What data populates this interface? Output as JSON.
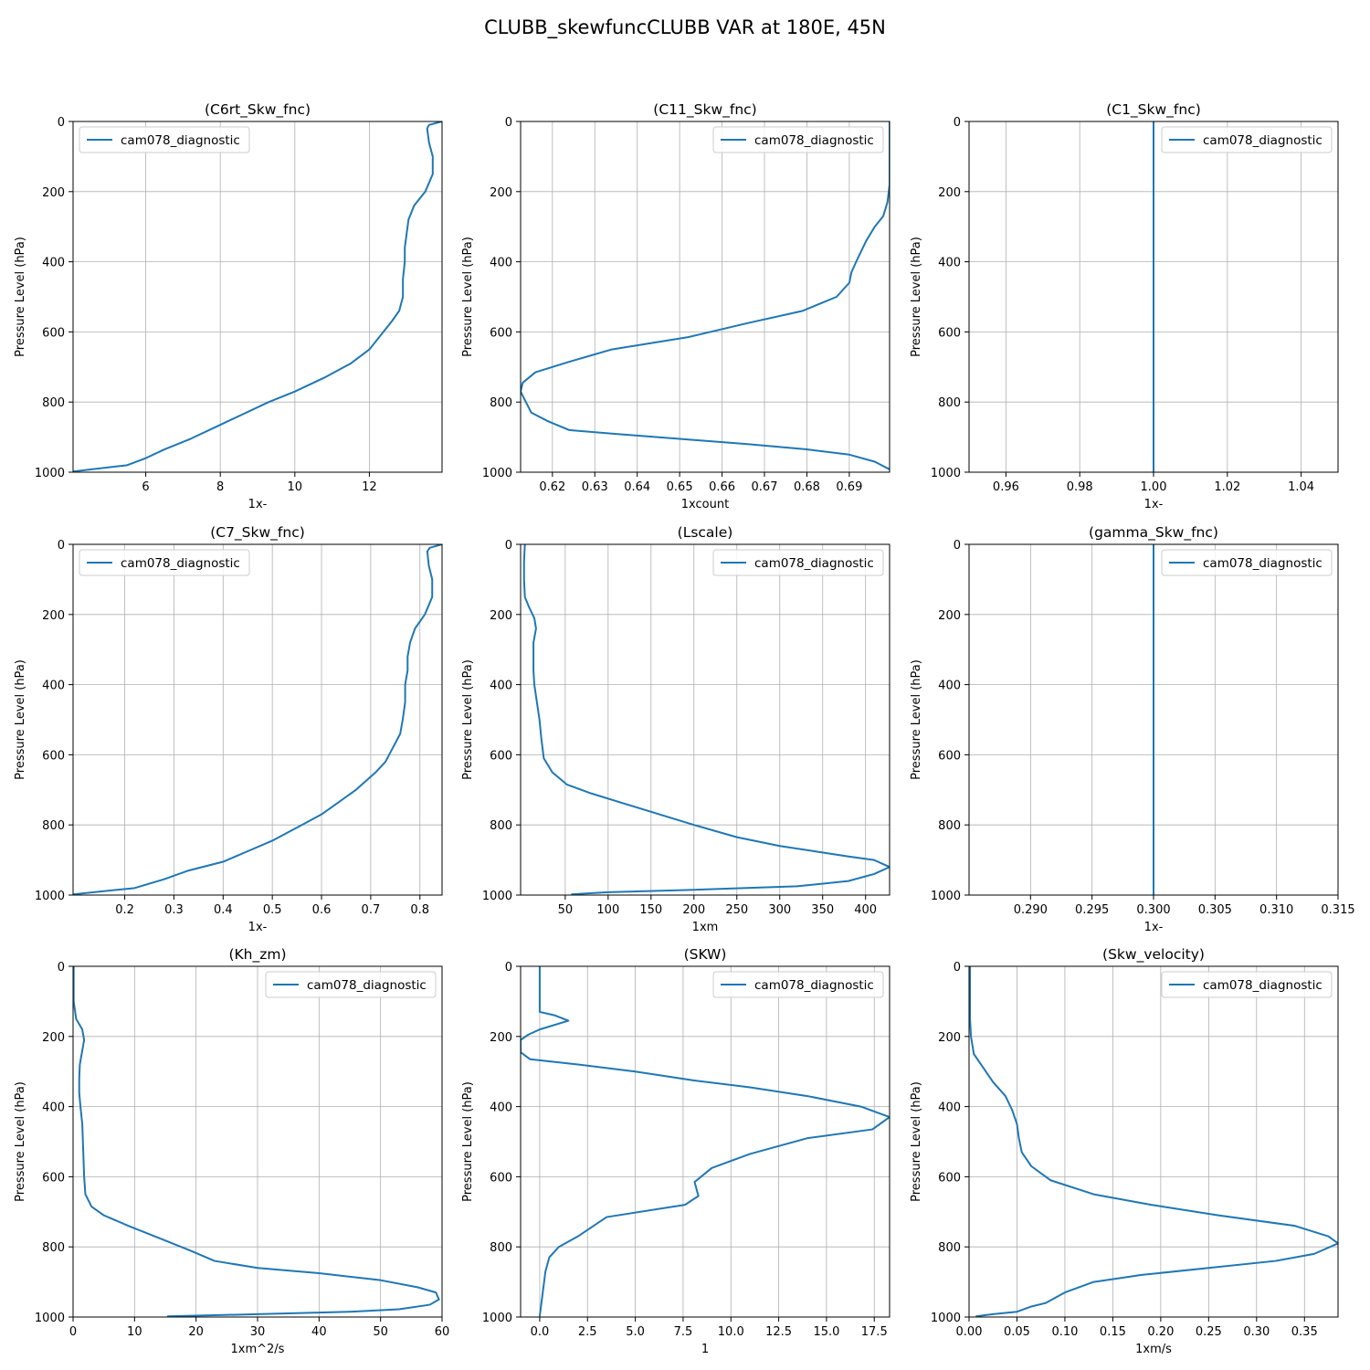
{
  "figure": {
    "title": "CLUBB_skewfuncCLUBB VAR at 180E, 45N"
  },
  "style": {
    "line_color": "#1f77b4",
    "grid_color": "#b0b0b0"
  },
  "chart_data": [
    {
      "type": "line",
      "title": "(C6rt_Skw_fnc)",
      "xlabel": "1x-",
      "ylabel": "Pressure Level (hPa)",
      "xlim": [
        4.05,
        13.95
      ],
      "ylim": [
        1000,
        0
      ],
      "xticks": [
        6,
        8,
        10,
        12
      ],
      "xtick_labels": [
        "6",
        "8",
        "10",
        "12"
      ],
      "yticks": [
        0,
        200,
        400,
        600,
        800,
        1000
      ],
      "ytick_labels": [
        "0",
        "200",
        "400",
        "600",
        "800",
        "1000"
      ],
      "grid": true,
      "legend": "upper-left",
      "series": [
        {
          "name": "cam078_diagnostic",
          "x": [
            13.95,
            13.6,
            13.55,
            13.6,
            13.7,
            13.7,
            13.5,
            13.2,
            13.05,
            13.0,
            12.95,
            12.95,
            12.9,
            12.9,
            12.8,
            12.6,
            12.3,
            12.0,
            11.5,
            10.8,
            10.0,
            9.3,
            8.6,
            7.9,
            7.2,
            6.5,
            6.0,
            5.5,
            4.05
          ],
          "y": [
            0,
            10,
            20,
            60,
            100,
            150,
            200,
            240,
            280,
            320,
            360,
            400,
            450,
            500,
            540,
            570,
            610,
            650,
            690,
            730,
            770,
            800,
            835,
            870,
            905,
            935,
            960,
            980,
            998
          ]
        }
      ]
    },
    {
      "type": "line",
      "title": "(C11_Skw_fnc)",
      "xlabel": "1xcount",
      "ylabel": "Pressure Level (hPa)",
      "xlim": [
        0.6125,
        0.6995
      ],
      "ylim": [
        1000,
        0
      ],
      "xticks": [
        0.62,
        0.63,
        0.64,
        0.65,
        0.66,
        0.67,
        0.68,
        0.69
      ],
      "xtick_labels": [
        "0.62",
        "0.63",
        "0.64",
        "0.65",
        "0.66",
        "0.67",
        "0.68",
        "0.69"
      ],
      "yticks": [
        0,
        200,
        400,
        600,
        800,
        1000
      ],
      "ytick_labels": [
        "0",
        "200",
        "400",
        "600",
        "800",
        "1000"
      ],
      "grid": true,
      "legend": "upper-right",
      "series": [
        {
          "name": "cam078_diagnostic",
          "x": [
            0.6995,
            0.6995,
            0.6995,
            0.699,
            0.698,
            0.696,
            0.694,
            0.692,
            0.6905,
            0.69,
            0.687,
            0.679,
            0.666,
            0.652,
            0.634,
            0.624,
            0.616,
            0.613,
            0.6125,
            0.615,
            0.619,
            0.624,
            0.634,
            0.65,
            0.666,
            0.68,
            0.69,
            0.696,
            0.6995
          ],
          "y": [
            0,
            100,
            180,
            230,
            270,
            300,
            340,
            390,
            430,
            460,
            500,
            540,
            575,
            615,
            650,
            685,
            715,
            745,
            770,
            830,
            855,
            880,
            890,
            905,
            920,
            935,
            950,
            970,
            992
          ]
        }
      ]
    },
    {
      "type": "line",
      "title": "(C1_Skw_fnc)",
      "xlabel": "1x-",
      "ylabel": "Pressure Level (hPa)",
      "xlim": [
        0.95,
        1.05
      ],
      "ylim": [
        1000,
        0
      ],
      "xticks": [
        0.96,
        0.98,
        1.0,
        1.02,
        1.04
      ],
      "xtick_labels": [
        "0.96",
        "0.98",
        "1.00",
        "1.02",
        "1.04"
      ],
      "yticks": [
        0,
        200,
        400,
        600,
        800,
        1000
      ],
      "ytick_labels": [
        "0",
        "200",
        "400",
        "600",
        "800",
        "1000"
      ],
      "grid": true,
      "legend": "upper-right",
      "series": [
        {
          "name": "cam078_diagnostic",
          "x": [
            1.0,
            1.0
          ],
          "y": [
            0,
            1000
          ]
        }
      ]
    },
    {
      "type": "line",
      "title": "(C7_Skw_fnc)",
      "xlabel": "1x-",
      "ylabel": "Pressure Level (hPa)",
      "xlim": [
        0.095,
        0.845
      ],
      "ylim": [
        1000,
        0
      ],
      "xticks": [
        0.2,
        0.3,
        0.4,
        0.5,
        0.6,
        0.7,
        0.8
      ],
      "xtick_labels": [
        "0.2",
        "0.3",
        "0.4",
        "0.5",
        "0.6",
        "0.7",
        "0.8"
      ],
      "yticks": [
        0,
        200,
        400,
        600,
        800,
        1000
      ],
      "ytick_labels": [
        "0",
        "200",
        "400",
        "600",
        "800",
        "1000"
      ],
      "grid": true,
      "legend": "upper-left",
      "series": [
        {
          "name": "cam078_diagnostic",
          "x": [
            0.845,
            0.82,
            0.815,
            0.818,
            0.825,
            0.825,
            0.81,
            0.79,
            0.78,
            0.775,
            0.775,
            0.77,
            0.77,
            0.765,
            0.76,
            0.745,
            0.73,
            0.71,
            0.67,
            0.63,
            0.6,
            0.56,
            0.5,
            0.45,
            0.4,
            0.33,
            0.28,
            0.22,
            0.095
          ],
          "y": [
            0,
            10,
            20,
            60,
            100,
            150,
            200,
            240,
            280,
            320,
            360,
            400,
            450,
            500,
            540,
            580,
            620,
            650,
            700,
            740,
            770,
            800,
            845,
            875,
            905,
            930,
            955,
            980,
            998
          ]
        }
      ]
    },
    {
      "type": "line",
      "title": "(Lscale)",
      "xlabel": "1xm",
      "ylabel": "Pressure Level (hPa)",
      "xlim": [
        -2,
        428
      ],
      "ylim": [
        1000,
        0
      ],
      "xticks": [
        50,
        100,
        150,
        200,
        250,
        300,
        350,
        400
      ],
      "xtick_labels": [
        "50",
        "100",
        "150",
        "200",
        "250",
        "300",
        "350",
        "400"
      ],
      "yticks": [
        0,
        200,
        400,
        600,
        800,
        1000
      ],
      "ytick_labels": [
        "0",
        "200",
        "400",
        "600",
        "800",
        "1000"
      ],
      "grid": true,
      "legend": "upper-right",
      "series": [
        {
          "name": "cam078_diagnostic",
          "x": [
            3,
            2,
            2,
            3,
            8,
            14,
            16,
            13,
            13,
            13,
            14,
            17,
            20,
            22,
            25,
            35,
            52,
            80,
            120,
            160,
            200,
            250,
            300,
            340,
            380,
            410,
            428,
            410,
            380,
            320,
            200,
            100,
            57
          ],
          "y": [
            0,
            50,
            100,
            150,
            180,
            210,
            240,
            280,
            320,
            360,
            400,
            450,
            500,
            550,
            610,
            650,
            685,
            710,
            740,
            770,
            800,
            835,
            860,
            875,
            890,
            900,
            920,
            940,
            960,
            975,
            985,
            992,
            998
          ]
        }
      ]
    },
    {
      "type": "line",
      "title": "(gamma_Skw_fnc)",
      "xlabel": "1x-",
      "ylabel": "Pressure Level (hPa)",
      "xlim": [
        0.285,
        0.315
      ],
      "ylim": [
        1000,
        0
      ],
      "xticks": [
        0.29,
        0.295,
        0.3,
        0.305,
        0.31,
        0.315
      ],
      "xtick_labels": [
        "0.290",
        "0.295",
        "0.300",
        "0.305",
        "0.310",
        "0.315"
      ],
      "yticks": [
        0,
        200,
        400,
        600,
        800,
        1000
      ],
      "ytick_labels": [
        "0",
        "200",
        "400",
        "600",
        "800",
        "1000"
      ],
      "grid": true,
      "legend": "upper-right",
      "series": [
        {
          "name": "cam078_diagnostic",
          "x": [
            0.3,
            0.3
          ],
          "y": [
            0,
            1000
          ]
        }
      ]
    },
    {
      "type": "line",
      "title": "(Kh_zm)",
      "xlabel": "1xm^2/s",
      "ylabel": "Pressure Level (hPa)",
      "xlim": [
        0,
        60
      ],
      "ylim": [
        1000,
        0
      ],
      "xticks": [
        0,
        10,
        20,
        30,
        40,
        50,
        60
      ],
      "xtick_labels": [
        "0",
        "10",
        "20",
        "30",
        "40",
        "50",
        "60"
      ],
      "yticks": [
        0,
        200,
        400,
        600,
        800,
        1000
      ],
      "ytick_labels": [
        "0",
        "200",
        "400",
        "600",
        "800",
        "1000"
      ],
      "grid": true,
      "legend": "upper-right",
      "series": [
        {
          "name": "cam078_diagnostic",
          "x": [
            0.1,
            0.1,
            0.1,
            0.5,
            1.5,
            1.8,
            1.5,
            1.1,
            1.0,
            1.0,
            1.2,
            1.5,
            1.6,
            1.7,
            1.8,
            2.0,
            3.0,
            5.0,
            9.0,
            14,
            19,
            23,
            30,
            40,
            50,
            56,
            59,
            59.5,
            58,
            53,
            45,
            30,
            15.3
          ],
          "y": [
            0,
            50,
            100,
            150,
            180,
            210,
            240,
            280,
            320,
            360,
            400,
            450,
            500,
            550,
            600,
            650,
            685,
            710,
            740,
            775,
            810,
            840,
            860,
            875,
            895,
            915,
            930,
            950,
            965,
            978,
            985,
            992,
            998
          ]
        }
      ]
    },
    {
      "type": "line",
      "title": "(SKW)",
      "xlabel": "1",
      "ylabel": "Pressure Level (hPa)",
      "xlim": [
        -1.0,
        18.3
      ],
      "ylim": [
        1000,
        0
      ],
      "xticks": [
        0.0,
        2.5,
        5.0,
        7.5,
        10.0,
        12.5,
        15.0,
        17.5
      ],
      "xtick_labels": [
        "0.0",
        "2.5",
        "5.0",
        "7.5",
        "10.0",
        "12.5",
        "15.0",
        "17.5"
      ],
      "yticks": [
        0,
        200,
        400,
        600,
        800,
        1000
      ],
      "ytick_labels": [
        "0",
        "200",
        "400",
        "600",
        "800",
        "1000"
      ],
      "grid": true,
      "legend": "upper-right",
      "series": [
        {
          "name": "cam078_diagnostic",
          "x": [
            0.0,
            0.0,
            0.0,
            0.8,
            1.5,
            0.0,
            -0.6,
            -1.0,
            -1.0,
            -0.5,
            2.0,
            5.0,
            8.0,
            11.0,
            14.0,
            16.8,
            18.3,
            17.4,
            14.0,
            11.0,
            9.0,
            8.1,
            8.3,
            7.6,
            3.5,
            2.0,
            1.0,
            0.5,
            0.3,
            0.0
          ],
          "y": [
            0,
            50,
            130,
            140,
            155,
            180,
            195,
            210,
            245,
            265,
            280,
            300,
            325,
            345,
            370,
            400,
            430,
            465,
            490,
            535,
            575,
            615,
            655,
            680,
            715,
            770,
            800,
            830,
            870,
            998
          ]
        }
      ]
    },
    {
      "type": "line",
      "title": "(Skw_velocity)",
      "xlabel": "1xm/s",
      "ylabel": "Pressure Level (hPa)",
      "xlim": [
        0.0,
        0.385
      ],
      "ylim": [
        1000,
        0
      ],
      "xticks": [
        0.0,
        0.05,
        0.1,
        0.15,
        0.2,
        0.25,
        0.3,
        0.35
      ],
      "xtick_labels": [
        "0.00",
        "0.05",
        "0.10",
        "0.15",
        "0.20",
        "0.25",
        "0.30",
        "0.35"
      ],
      "yticks": [
        0,
        200,
        400,
        600,
        800,
        1000
      ],
      "ytick_labels": [
        "0",
        "200",
        "400",
        "600",
        "800",
        "1000"
      ],
      "grid": true,
      "legend": "upper-right",
      "series": [
        {
          "name": "cam078_diagnostic",
          "x": [
            0.001,
            0.001,
            0.001,
            0.001,
            0.002,
            0.005,
            0.015,
            0.025,
            0.038,
            0.045,
            0.05,
            0.052,
            0.055,
            0.065,
            0.085,
            0.13,
            0.19,
            0.26,
            0.34,
            0.375,
            0.385,
            0.36,
            0.32,
            0.25,
            0.18,
            0.13,
            0.1,
            0.08,
            0.065,
            0.05,
            0.025,
            0.007
          ],
          "y": [
            0,
            50,
            100,
            150,
            200,
            250,
            290,
            330,
            370,
            410,
            450,
            490,
            530,
            570,
            610,
            650,
            680,
            710,
            740,
            770,
            790,
            820,
            840,
            860,
            880,
            900,
            930,
            960,
            970,
            985,
            992,
            998
          ]
        }
      ]
    }
  ]
}
